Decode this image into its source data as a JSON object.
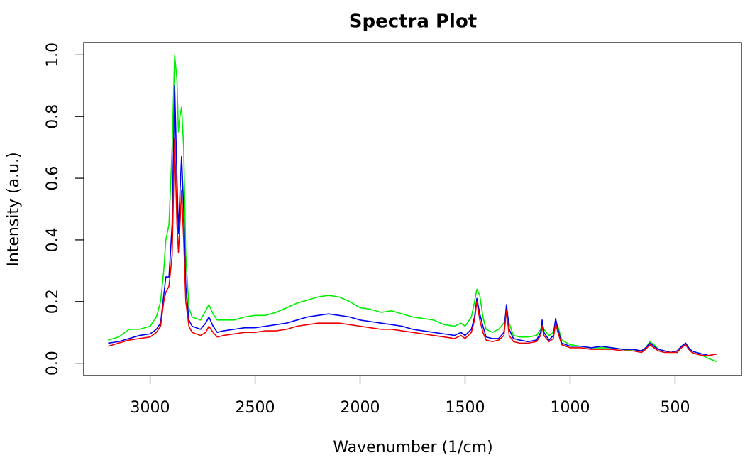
{
  "chart_data": {
    "type": "line",
    "title": "Spectra Plot",
    "x_label": "Wavenumber (1/cm)",
    "y_label": "Intensity (a.u.)",
    "xlim": [
      3316,
      184
    ],
    "ylim": [
      -0.04,
      1.04
    ],
    "xticks": [
      3000,
      2500,
      2000,
      1500,
      1000,
      500
    ],
    "yticks": [
      {
        "value": 0,
        "label": "0.0"
      },
      0.2,
      0.4,
      0.6,
      0.8,
      {
        "value": 1,
        "label": "1.0"
      }
    ],
    "x": [
      3200,
      3150,
      3100,
      3050,
      3000,
      2970,
      2950,
      2935,
      2925,
      2910,
      2895,
      2883,
      2872,
      2865,
      2858,
      2850,
      2840,
      2830,
      2815,
      2800,
      2760,
      2735,
      2720,
      2700,
      2680,
      2650,
      2600,
      2550,
      2500,
      2450,
      2400,
      2350,
      2300,
      2250,
      2200,
      2150,
      2100,
      2050,
      2000,
      1950,
      1900,
      1850,
      1800,
      1750,
      1700,
      1650,
      1600,
      1550,
      1520,
      1500,
      1470,
      1455,
      1444,
      1430,
      1415,
      1400,
      1370,
      1340,
      1315,
      1303,
      1290,
      1270,
      1240,
      1200,
      1160,
      1140,
      1133,
      1125,
      1100,
      1080,
      1069,
      1058,
      1040,
      1000,
      950,
      900,
      850,
      800,
      750,
      700,
      660,
      640,
      620,
      600,
      580,
      550,
      520,
      490,
      470,
      450,
      435,
      420,
      400,
      370,
      340,
      300
    ],
    "series": [
      {
        "color": "#00ee00",
        "values": [
          0.075,
          0.085,
          0.11,
          0.11,
          0.12,
          0.15,
          0.2,
          0.3,
          0.4,
          0.45,
          0.7,
          1.0,
          0.92,
          0.75,
          0.8,
          0.83,
          0.7,
          0.35,
          0.18,
          0.15,
          0.14,
          0.17,
          0.19,
          0.16,
          0.14,
          0.14,
          0.14,
          0.15,
          0.155,
          0.155,
          0.165,
          0.18,
          0.195,
          0.205,
          0.215,
          0.22,
          0.215,
          0.2,
          0.18,
          0.175,
          0.165,
          0.17,
          0.16,
          0.15,
          0.145,
          0.14,
          0.125,
          0.12,
          0.13,
          0.12,
          0.15,
          0.2,
          0.24,
          0.22,
          0.15,
          0.11,
          0.1,
          0.11,
          0.13,
          0.17,
          0.13,
          0.09,
          0.085,
          0.085,
          0.09,
          0.11,
          0.13,
          0.11,
          0.09,
          0.1,
          0.13,
          0.12,
          0.075,
          0.06,
          0.055,
          0.05,
          0.05,
          0.05,
          0.045,
          0.04,
          0.04,
          0.05,
          0.07,
          0.06,
          0.045,
          0.04,
          0.035,
          0.04,
          0.05,
          0.065,
          0.05,
          0.035,
          0.03,
          0.025,
          0.015,
          0.005
        ]
      },
      {
        "color": "#0000ee",
        "values": [
          0.065,
          0.07,
          0.08,
          0.09,
          0.095,
          0.11,
          0.13,
          0.22,
          0.28,
          0.28,
          0.45,
          0.9,
          0.6,
          0.42,
          0.55,
          0.67,
          0.5,
          0.25,
          0.14,
          0.12,
          0.11,
          0.13,
          0.15,
          0.12,
          0.1,
          0.105,
          0.11,
          0.115,
          0.115,
          0.12,
          0.125,
          0.13,
          0.14,
          0.15,
          0.155,
          0.16,
          0.155,
          0.15,
          0.14,
          0.135,
          0.13,
          0.125,
          0.12,
          0.11,
          0.105,
          0.1,
          0.095,
          0.09,
          0.1,
          0.09,
          0.11,
          0.15,
          0.21,
          0.16,
          0.12,
          0.085,
          0.08,
          0.08,
          0.1,
          0.19,
          0.11,
          0.08,
          0.075,
          0.07,
          0.075,
          0.1,
          0.14,
          0.1,
          0.075,
          0.09,
          0.145,
          0.11,
          0.065,
          0.055,
          0.055,
          0.05,
          0.055,
          0.05,
          0.045,
          0.045,
          0.04,
          0.05,
          0.065,
          0.055,
          0.045,
          0.04,
          0.035,
          0.04,
          0.055,
          0.065,
          0.05,
          0.04,
          0.035,
          0.03,
          0.025,
          0.03
        ]
      },
      {
        "color": "#ee0000",
        "values": [
          0.055,
          0.065,
          0.075,
          0.08,
          0.085,
          0.1,
          0.12,
          0.2,
          0.23,
          0.25,
          0.35,
          0.73,
          0.45,
          0.36,
          0.45,
          0.56,
          0.4,
          0.2,
          0.12,
          0.1,
          0.09,
          0.1,
          0.12,
          0.1,
          0.085,
          0.09,
          0.095,
          0.1,
          0.1,
          0.105,
          0.105,
          0.11,
          0.12,
          0.125,
          0.13,
          0.13,
          0.13,
          0.125,
          0.12,
          0.115,
          0.11,
          0.11,
          0.105,
          0.1,
          0.095,
          0.09,
          0.085,
          0.08,
          0.09,
          0.08,
          0.1,
          0.14,
          0.2,
          0.14,
          0.1,
          0.075,
          0.07,
          0.075,
          0.09,
          0.17,
          0.09,
          0.07,
          0.065,
          0.065,
          0.07,
          0.09,
          0.12,
          0.09,
          0.07,
          0.08,
          0.13,
          0.1,
          0.06,
          0.05,
          0.05,
          0.045,
          0.045,
          0.045,
          0.04,
          0.04,
          0.035,
          0.045,
          0.06,
          0.05,
          0.04,
          0.035,
          0.035,
          0.035,
          0.05,
          0.06,
          0.045,
          0.035,
          0.03,
          0.025,
          0.025,
          0.03
        ]
      }
    ]
  }
}
